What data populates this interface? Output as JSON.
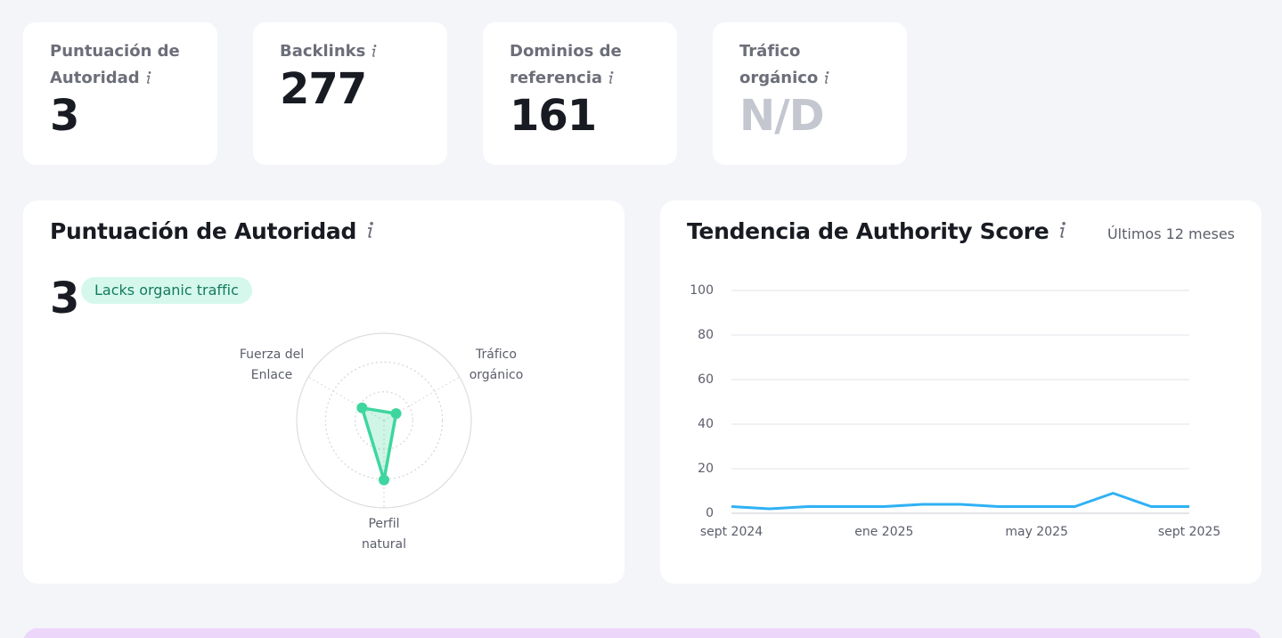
{
  "metrics": [
    {
      "label": "Puntuación de Autoridad",
      "value": "3"
    },
    {
      "label": "Backlinks",
      "value": "277"
    },
    {
      "label": "Dominios de referencia",
      "value": "161"
    },
    {
      "label": "Tráfico orgánico",
      "value": "N/D"
    }
  ],
  "authority_panel": {
    "title": "Puntuación de Autoridad",
    "score": "3",
    "badge": "Lacks organic traffic",
    "chart_data": {
      "type": "radar",
      "axes": [
        "Fuerza del Enlace",
        "Tráfico orgánico",
        "Perfil natural"
      ],
      "values": [
        29,
        16,
        68
      ],
      "color": "#3ed69f",
      "rlim": [
        0,
        100
      ],
      "rticks": [
        33,
        67,
        100
      ]
    }
  },
  "trend_panel": {
    "title": "Tendencia de Authority Score",
    "subtitle": "Últimos 12 meses",
    "chart_data": {
      "type": "line",
      "categories": [
        "sept 2024",
        null,
        null,
        null,
        "ene 2025",
        null,
        null,
        null,
        "may 2025",
        null,
        null,
        null,
        "sept 2025"
      ],
      "series": [
        {
          "name": "Authority Score",
          "color": "#2fb1f4",
          "values": [
            3,
            2,
            3,
            3,
            3,
            4,
            4,
            3,
            3,
            3,
            9,
            3,
            3
          ]
        }
      ],
      "ylim": [
        0,
        100
      ],
      "yticks": [
        0,
        20,
        40,
        60,
        80,
        100
      ],
      "grid": true
    }
  }
}
